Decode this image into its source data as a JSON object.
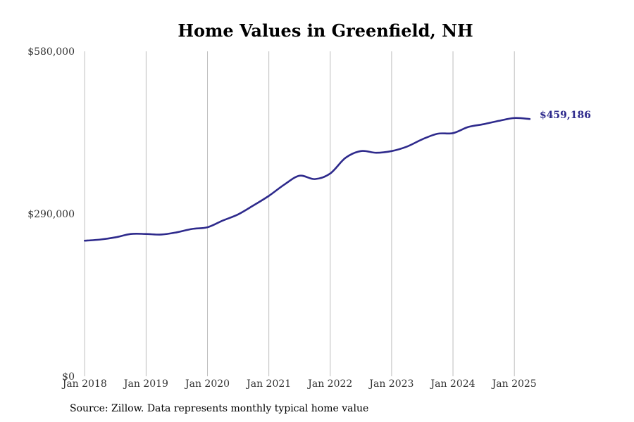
{
  "chart_data": {
    "type": "line",
    "title": "Home Values in Greenfield, NH",
    "xlabel": "",
    "ylabel": "",
    "x_range": [
      "2017-12",
      "2025-08"
    ],
    "ylim": [
      0,
      580000
    ],
    "y_ticks": [
      {
        "value": 0,
        "label": "$0"
      },
      {
        "value": 290000,
        "label": "$290,000"
      },
      {
        "value": 580000,
        "label": "$580,000"
      }
    ],
    "x_ticks": [
      {
        "date": "2018-01",
        "label": "Jan 2018"
      },
      {
        "date": "2019-01",
        "label": "Jan 2019"
      },
      {
        "date": "2020-01",
        "label": "Jan 2020"
      },
      {
        "date": "2021-01",
        "label": "Jan 2021"
      },
      {
        "date": "2022-01",
        "label": "Jan 2022"
      },
      {
        "date": "2023-01",
        "label": "Jan 2023"
      },
      {
        "date": "2024-01",
        "label": "Jan 2024"
      },
      {
        "date": "2025-01",
        "label": "Jan 2025"
      }
    ],
    "grid": "vertical",
    "colors": {
      "line": "#2e2a8c",
      "end_label": "#2e2a8c",
      "grid": "#bdbdbd"
    },
    "end_label": "$459,186",
    "series": [
      {
        "x": [
          "2018-01",
          "2018-04",
          "2018-07",
          "2018-10",
          "2019-01",
          "2019-04",
          "2019-07",
          "2019-10",
          "2020-01",
          "2020-04",
          "2020-07",
          "2020-10",
          "2021-01",
          "2021-04",
          "2021-07",
          "2021-10",
          "2022-01",
          "2022-04",
          "2022-07",
          "2022-10",
          "2023-01",
          "2023-04",
          "2023-07",
          "2023-10",
          "2024-01",
          "2024-04",
          "2024-07",
          "2024-10",
          "2025-01",
          "2025-04"
        ],
        "y": [
          242000,
          244000,
          248000,
          254000,
          254000,
          253000,
          257000,
          263000,
          266000,
          278000,
          289000,
          305000,
          322000,
          342000,
          358000,
          352000,
          362000,
          390000,
          402000,
          399000,
          402000,
          410000,
          423000,
          433000,
          434000,
          445000,
          450000,
          456000,
          461000,
          459186
        ]
      }
    ]
  },
  "source_note": "Source: Zillow. Data represents monthly typical home value"
}
